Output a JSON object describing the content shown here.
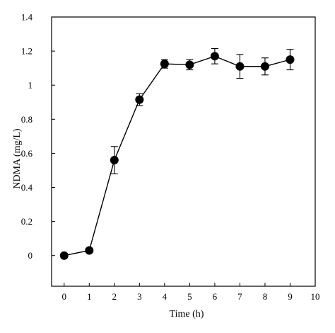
{
  "chart_data": {
    "type": "line",
    "title": "",
    "xlabel": "Time (h)",
    "ylabel": "NDMA (mg/L)",
    "xlim": [
      -0.5,
      10
    ],
    "ylim": [
      -0.18,
      1.4
    ],
    "x_ticks": [
      0,
      1,
      2,
      3,
      4,
      5,
      6,
      7,
      8,
      9,
      10
    ],
    "y_ticks": [
      0,
      0.2,
      0.4,
      0.6,
      0.8,
      1,
      1.2,
      1.4
    ],
    "x_tick_labels": [
      "0",
      "1",
      "2",
      "3",
      "4",
      "5",
      "6",
      "7",
      "8",
      "9",
      "10"
    ],
    "y_tick_labels": [
      "0",
      "0.2",
      "0.4",
      "0.6",
      "0.8",
      "1",
      "1.2",
      "1.4"
    ],
    "grid": false,
    "series": [
      {
        "x": [
          0,
          1,
          2,
          3,
          4,
          5,
          6,
          7,
          8,
          9
        ],
        "y": [
          0,
          0.03,
          0.56,
          0.915,
          1.125,
          1.12,
          1.17,
          1.11,
          1.11,
          1.15
        ],
        "error": [
          0,
          0,
          0.08,
          0.035,
          0.025,
          0.03,
          0.045,
          0.07,
          0.05,
          0.06
        ],
        "color": "#000000",
        "marker": "filled-circle"
      }
    ]
  }
}
